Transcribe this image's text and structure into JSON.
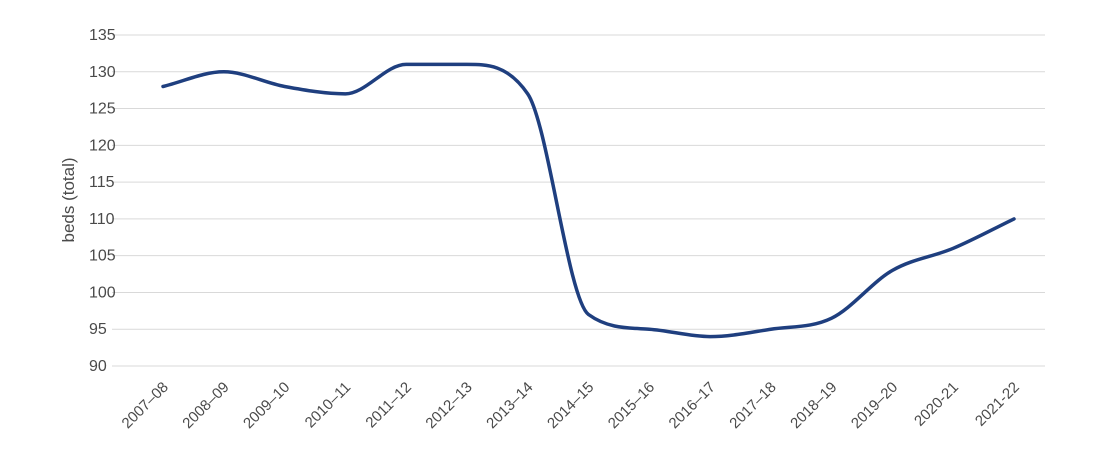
{
  "chart_data": {
    "type": "line",
    "ylabel": "beds (total)",
    "xlabel": "",
    "ylim": [
      90,
      135
    ],
    "yticks": [
      135,
      130,
      125,
      120,
      115,
      110,
      105,
      100,
      95,
      90
    ],
    "categories": [
      "2007–08",
      "2008–09",
      "2009–10",
      "2010–11",
      "2011–12",
      "2012–13",
      "2013–14",
      "2014–15",
      "2015–16",
      "2016–17",
      "2017–18",
      "2018–19",
      "2019–20",
      "2020-21",
      "2021-22"
    ],
    "series": [
      {
        "values": [
          128,
          130,
          128,
          127,
          131,
          131,
          127,
          97,
          95,
          94,
          95,
          96.5,
          103,
          106,
          110
        ]
      }
    ],
    "grid": true,
    "line_color": "#1f3f7f"
  }
}
